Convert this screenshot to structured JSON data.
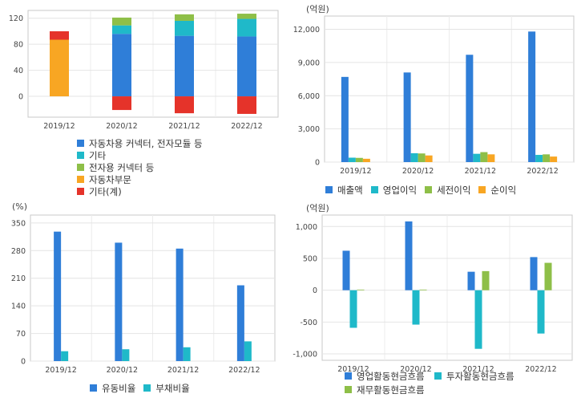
{
  "chart_data": [
    {
      "id": "revenue-composition",
      "type": "bar",
      "stacked": true,
      "unit_label": "",
      "categories": [
        "2019/12",
        "2020/12",
        "2021/12",
        "2022/12"
      ],
      "yticks": [
        0,
        40,
        80,
        120
      ],
      "ylim": [
        -32,
        132
      ],
      "grid": true,
      "legend_position": "bottom",
      "series": [
        {
          "name": "자동차용 커넥터, 전자모듈 등",
          "color": "#2f7ed8",
          "values": [
            null,
            96,
            93,
            92
          ]
        },
        {
          "name": "기타",
          "color": "#1fb9c9",
          "values": [
            null,
            13,
            23,
            27
          ]
        },
        {
          "name": "전자용 커넥터 등",
          "color": "#8ebf48",
          "values": [
            null,
            12,
            10,
            8
          ]
        },
        {
          "name": "자동차부문",
          "color": "#f8a623",
          "values": [
            87,
            null,
            null,
            null
          ]
        },
        {
          "name": "기타(계)",
          "color": "#e5332a",
          "values": [
            13,
            -21,
            -26,
            -27
          ]
        }
      ]
    },
    {
      "id": "income",
      "type": "bar",
      "unit_label": "(억원)",
      "categories": [
        "2019/12",
        "2020/12",
        "2021/12",
        "2022/12"
      ],
      "yticks": [
        "0",
        "3,000",
        "6,000",
        "9,000",
        "12,000"
      ],
      "ylim": [
        0,
        13200
      ],
      "grid": true,
      "legend_position": "bottom",
      "series": [
        {
          "name": "매출액",
          "color": "#2f7ed8",
          "values": [
            7700,
            8100,
            9700,
            11800
          ]
        },
        {
          "name": "영업이익",
          "color": "#1fb9c9",
          "values": [
            400,
            800,
            750,
            650
          ]
        },
        {
          "name": "세전이익",
          "color": "#8ebf48",
          "values": [
            380,
            780,
            900,
            700
          ]
        },
        {
          "name": "순이익",
          "color": "#f8a623",
          "values": [
            300,
            600,
            700,
            500
          ]
        }
      ]
    },
    {
      "id": "ratios",
      "type": "bar",
      "unit_label": "(%)",
      "categories": [
        "2019/12",
        "2020/12",
        "2021/12",
        "2022/12"
      ],
      "yticks": [
        "0",
        "70",
        "140",
        "210",
        "280",
        "350"
      ],
      "ylim": [
        0,
        370
      ],
      "grid": true,
      "legend_position": "bottom",
      "series": [
        {
          "name": "유동비율",
          "color": "#2f7ed8",
          "values": [
            328,
            300,
            285,
            192
          ]
        },
        {
          "name": "부채비율",
          "color": "#1fb9c9",
          "values": [
            25,
            30,
            35,
            50
          ]
        }
      ]
    },
    {
      "id": "cashflow",
      "type": "bar",
      "unit_label": "(억원)",
      "categories": [
        "2019/12",
        "2020/12",
        "2021/12",
        "2022/12"
      ],
      "yticks": [
        "-1,000",
        "-500",
        "0",
        "500",
        "1,000"
      ],
      "ylim": [
        -1100,
        1180
      ],
      "grid": true,
      "legend_position": "bottom",
      "series": [
        {
          "name": "영업활동현금흐름",
          "color": "#2f7ed8",
          "values": [
            620,
            1080,
            290,
            520
          ]
        },
        {
          "name": "투자활동현금흐름",
          "color": "#1fb9c9",
          "values": [
            -590,
            -540,
            -920,
            -680
          ]
        },
        {
          "name": "재무활동현금흐름",
          "color": "#8ebf48",
          "values": [
            10,
            10,
            300,
            430
          ]
        }
      ]
    }
  ]
}
